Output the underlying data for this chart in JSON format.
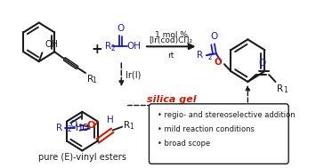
{
  "bg_color": "#ffffff",
  "arrow_label1": "1 mol %",
  "arrow_label2": "[Ir(cod)Cl]₂",
  "arrow_label3": "rt",
  "ir_label": "Ir(I)",
  "silica_label": "silica gel",
  "bottom_label": "pure (E)-vinyl esters",
  "bullet_points": [
    "regio- and stereoselective addition",
    "mild reaction conditions",
    "broad scope"
  ],
  "black": "#1a1a1a",
  "blue": "#1a1acc",
  "red": "#cc1a00"
}
